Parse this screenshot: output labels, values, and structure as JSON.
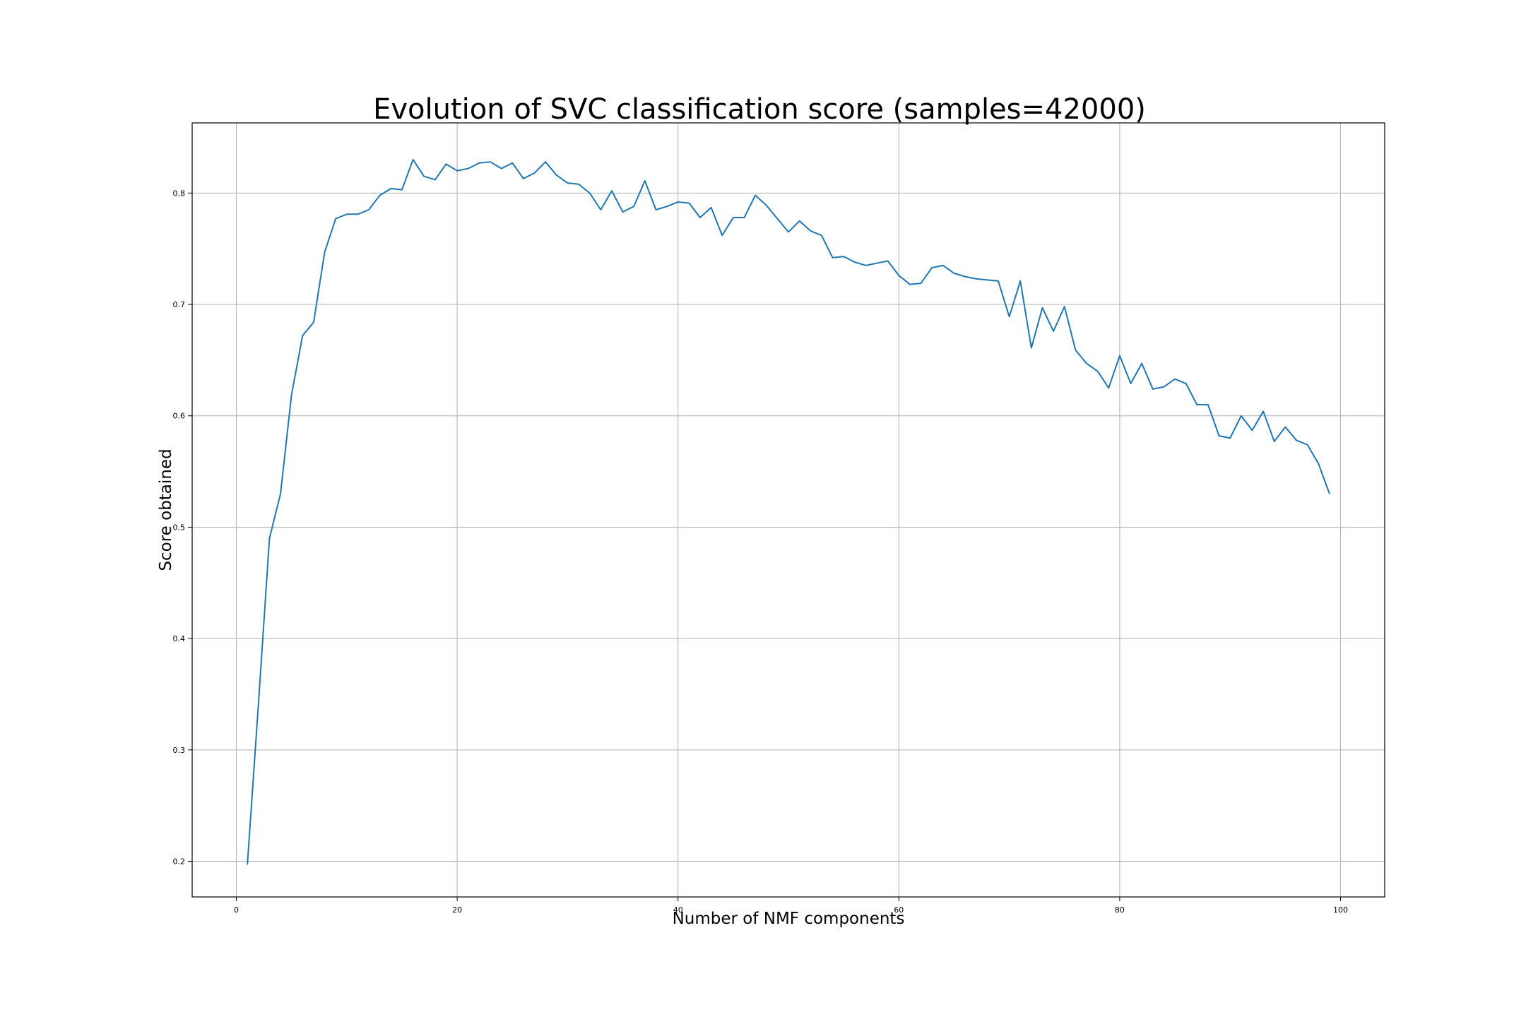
{
  "chart_data": {
    "type": "line",
    "title": "Evolution of SVC classification score (samples=42000)",
    "xlabel": "Number of NMF components",
    "ylabel": "Score obtained",
    "xlim": [
      -4,
      104
    ],
    "ylim": [
      0.168,
      0.863
    ],
    "xticks": [
      0,
      20,
      40,
      60,
      80,
      100
    ],
    "yticks": [
      0.2,
      0.3,
      0.4,
      0.5,
      0.6,
      0.7,
      0.8
    ],
    "xtick_labels": [
      "0",
      "20",
      "40",
      "60",
      "80",
      "100"
    ],
    "ytick_labels": [
      "0.2",
      "0.3",
      "0.4",
      "0.5",
      "0.6",
      "0.7",
      "0.8"
    ],
    "grid": true,
    "legend": "none",
    "series_color": "#1f77b4",
    "x": [
      1,
      2,
      3,
      4,
      5,
      6,
      7,
      8,
      9,
      10,
      11,
      12,
      13,
      14,
      15,
      16,
      17,
      18,
      19,
      20,
      21,
      22,
      23,
      24,
      25,
      26,
      27,
      28,
      29,
      30,
      31,
      32,
      33,
      34,
      35,
      36,
      37,
      38,
      39,
      40,
      41,
      42,
      43,
      44,
      45,
      46,
      47,
      48,
      49,
      50,
      51,
      52,
      53,
      54,
      55,
      56,
      57,
      58,
      59,
      60,
      61,
      62,
      63,
      64,
      65,
      66,
      67,
      68,
      69,
      70,
      71,
      72,
      73,
      74,
      75,
      76,
      77,
      78,
      79,
      80,
      81,
      82,
      83,
      84,
      85,
      86,
      87,
      88,
      89,
      90,
      91,
      92,
      93,
      94,
      95,
      96,
      97,
      98,
      99
    ],
    "series": [
      {
        "values": [
          0.197,
          0.341,
          0.49,
          0.53,
          0.619,
          0.672,
          0.684,
          0.747,
          0.777,
          0.781,
          0.781,
          0.785,
          0.798,
          0.804,
          0.803,
          0.83,
          0.815,
          0.812,
          0.826,
          0.82,
          0.822,
          0.827,
          0.828,
          0.822,
          0.827,
          0.813,
          0.818,
          0.828,
          0.816,
          0.809,
          0.808,
          0.8,
          0.785,
          0.802,
          0.783,
          0.788,
          0.811,
          0.785,
          0.788,
          0.792,
          0.791,
          0.778,
          0.787,
          0.762,
          0.778,
          0.778,
          0.798,
          0.789,
          0.777,
          0.765,
          0.775,
          0.766,
          0.762,
          0.742,
          0.743,
          0.738,
          0.735,
          0.737,
          0.739,
          0.726,
          0.718,
          0.719,
          0.733,
          0.735,
          0.728,
          0.725,
          0.723,
          0.722,
          0.721,
          0.689,
          0.721,
          0.661,
          0.697,
          0.676,
          0.698,
          0.659,
          0.647,
          0.64,
          0.625,
          0.654,
          0.629,
          0.647,
          0.624,
          0.626,
          0.633,
          0.629,
          0.61,
          0.61,
          0.582,
          0.58,
          0.6,
          0.587,
          0.604,
          0.577,
          0.59,
          0.578,
          0.574,
          0.557,
          0.53
        ]
      }
    ]
  }
}
